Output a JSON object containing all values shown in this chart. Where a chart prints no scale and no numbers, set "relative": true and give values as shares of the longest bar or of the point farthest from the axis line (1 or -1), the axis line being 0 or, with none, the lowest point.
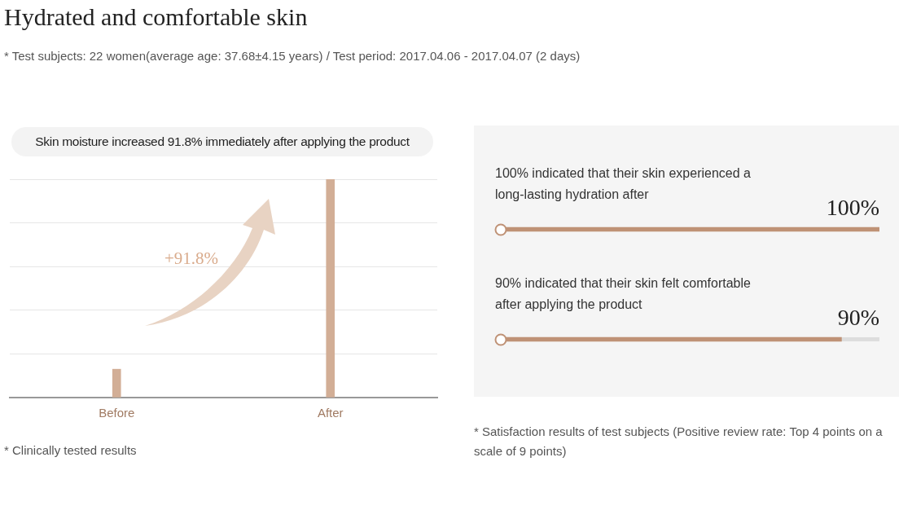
{
  "chart_data": [
    {
      "type": "bar",
      "title": "Hydrated and comfortable skin",
      "subtitle": "* Test subjects: 22 women(average age: 37.68±4.15 years) / Test period: 2017.04.06 - 2017.04.07 (2 days)",
      "categories": [
        "Before",
        "After"
      ],
      "values": [
        0.13,
        1
      ],
      "color": "#d2ae96",
      "relative": true,
      "grid": "y",
      "annotations": [
        "Skin moisture increased 91.8% immediately after applying the product",
        "+91.8%",
        "* Clinically tested results"
      ]
    },
    {
      "type": "bar",
      "orientation": "horizontal",
      "categories": [
        "100% indicated that their skin experienced a long-lasting hydration after",
        "90% indicated that their skin felt comfortable after applying the product"
      ],
      "values": [
        100,
        90
      ],
      "value_labels": [
        "100%",
        "90%"
      ],
      "color": "#bf9276",
      "xlim": [
        0,
        100
      ],
      "tick_labels": false,
      "annotations": [
        "* Satisfaction results of test subjects (Positive review rate: Top 4 points on a scale of 9 points)"
      ]
    }
  ]
}
